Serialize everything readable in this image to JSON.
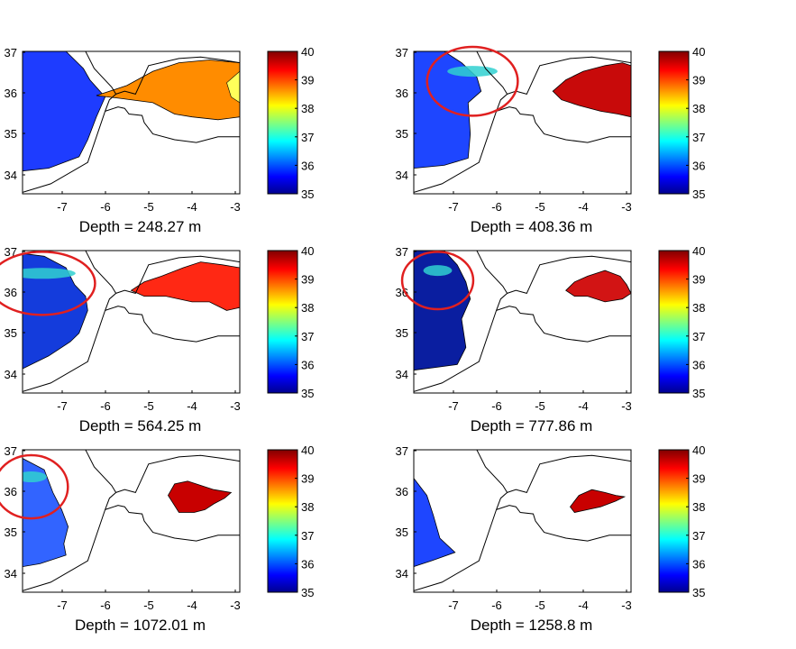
{
  "chart_data": {
    "type": "heatmap",
    "colorbar": {
      "min": 35,
      "max": 40,
      "ticks": [
        "40",
        "39",
        "38",
        "37",
        "36",
        "35"
      ],
      "colormap": [
        "#00008f",
        "#0000ff",
        "#00ffff",
        "#ffff00",
        "#ff0000",
        "#800000"
      ]
    },
    "xticks": [
      "-7",
      "-6",
      "-5",
      "-4",
      "-3"
    ],
    "yticks": [
      "37",
      "36",
      "35",
      "34"
    ],
    "panels": [
      {
        "title": "Depth = 248.27 m",
        "west_color": "#1e3cff",
        "east_color": "#ff8c00",
        "east_accent": "#ffff5a",
        "highlight": false
      },
      {
        "title": "Depth = 408.36 m",
        "west_color": "#1e46ff",
        "east_color": "#c80a0a",
        "highlight": true
      },
      {
        "title": "Depth = 564.25 m",
        "west_color": "#143cdc",
        "east_color": "#ff2814",
        "highlight": true
      },
      {
        "title": "Depth = 777.86 m",
        "west_color": "#0a1ea0",
        "east_color": "#d21414",
        "highlight": true
      },
      {
        "title": "Depth = 1072.01 m",
        "west_color": "#3264ff",
        "east_color": "#c80000",
        "highlight": true
      },
      {
        "title": "Depth = 1258.8 m",
        "west_color": "#1e46ff",
        "east_color": "#c80000",
        "highlight": false
      }
    ]
  }
}
